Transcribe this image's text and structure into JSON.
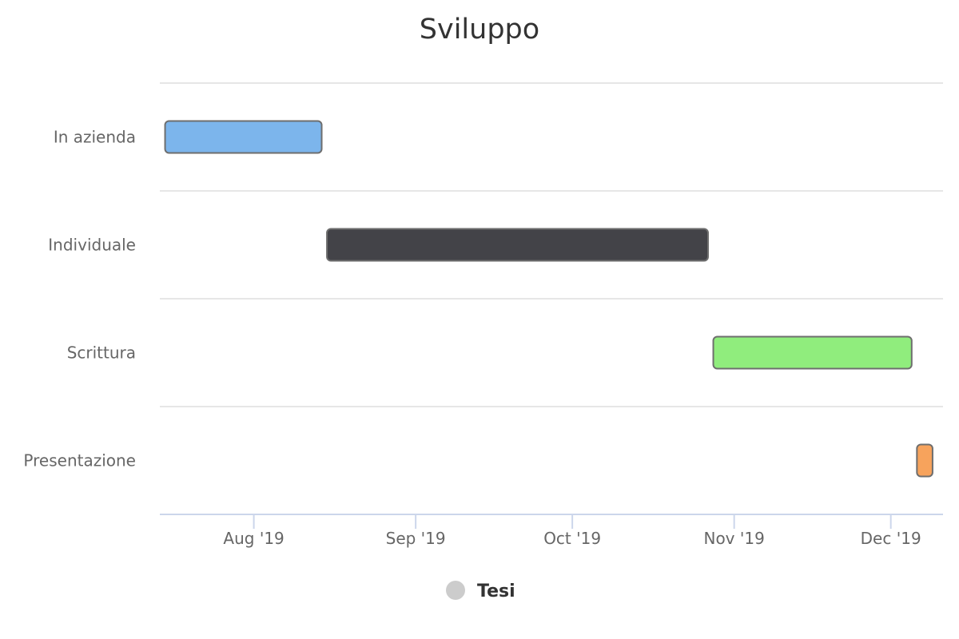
{
  "chart_data": {
    "type": "gantt",
    "title": "Sviluppo",
    "categories": [
      "In azienda",
      "Individuale",
      "Scrittura",
      "Presentazione"
    ],
    "series": [
      {
        "name": "Tesi",
        "tasks": [
          {
            "category": "In azienda",
            "start": "2019-07-15",
            "end": "2019-08-14",
            "color": "#7cb5ec"
          },
          {
            "category": "Individuale",
            "start": "2019-08-15",
            "end": "2019-10-27",
            "color": "#434348"
          },
          {
            "category": "Scrittura",
            "start": "2019-10-28",
            "end": "2019-12-05",
            "color": "#90ed7d"
          },
          {
            "category": "Presentazione",
            "start": "2019-12-06",
            "end": "2019-12-09",
            "color": "#f7a35c"
          }
        ]
      }
    ],
    "x_ticks": [
      {
        "date": "2019-08-01",
        "label": "Aug '19"
      },
      {
        "date": "2019-09-01",
        "label": "Sep '19"
      },
      {
        "date": "2019-10-01",
        "label": "Oct '19"
      },
      {
        "date": "2019-11-01",
        "label": "Nov '19"
      },
      {
        "date": "2019-12-01",
        "label": "Dec '19"
      }
    ],
    "xlim": [
      "2019-07-14",
      "2019-12-11"
    ],
    "legend": {
      "position": "bottom",
      "marker_color": "#cccccc"
    },
    "grid": true
  }
}
